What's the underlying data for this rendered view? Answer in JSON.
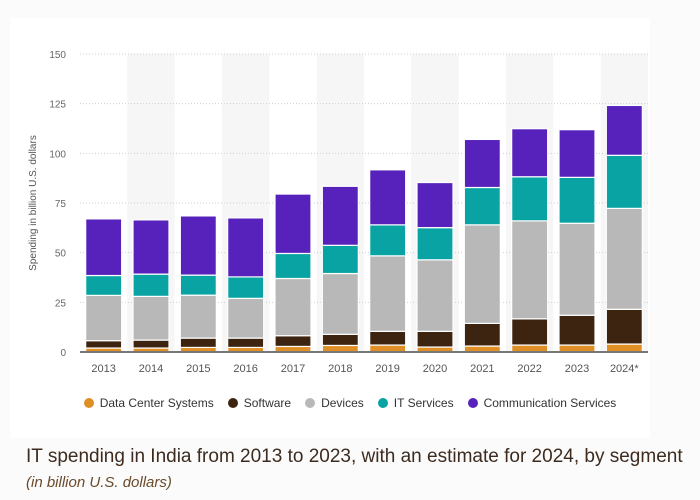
{
  "chart_data": {
    "type": "bar",
    "stacked": true,
    "title": "IT spending in India from 2013 to 2023, with an estimate for 2024, by segment",
    "subtitle": "(in billion U.S. dollars)",
    "xlabel": "",
    "ylabel": "Spending in billion U.S. dollars",
    "ylim": [
      0,
      150
    ],
    "yticks": [
      0,
      25,
      50,
      75,
      100,
      125,
      150
    ],
    "grid": true,
    "legend_position": "bottom",
    "categories": [
      "2013",
      "2014",
      "2015",
      "2016",
      "2017",
      "2018",
      "2019",
      "2020",
      "2021",
      "2022",
      "2023",
      "2024*"
    ],
    "series": [
      {
        "name": "Data Center Systems",
        "color": "#e08e26",
        "values": [
          2.0,
          2.0,
          2.3,
          2.3,
          2.8,
          3.3,
          3.5,
          2.5,
          3.0,
          3.5,
          3.5,
          4.0
        ]
      },
      {
        "name": "Software",
        "color": "#3d2410",
        "values": [
          3.7,
          4.0,
          4.7,
          4.7,
          5.4,
          5.6,
          6.9,
          7.9,
          11.4,
          13.2,
          15.0,
          17.5
        ]
      },
      {
        "name": "Devices",
        "color": "#b8b8b8",
        "values": [
          22.8,
          22.0,
          21.6,
          20.0,
          28.8,
          30.6,
          38.0,
          36.0,
          49.6,
          49.3,
          46.3,
          50.8
        ]
      },
      {
        "name": "IT Services",
        "color": "#0aa3a3",
        "values": [
          10.0,
          11.2,
          10.1,
          10.8,
          12.6,
          14.2,
          15.6,
          16.2,
          18.8,
          22.2,
          23.1,
          26.7
        ]
      },
      {
        "name": "Communication Services",
        "color": "#5722bb",
        "values": [
          28.5,
          27.3,
          29.8,
          29.7,
          29.9,
          29.7,
          27.7,
          22.7,
          24.2,
          24.2,
          24.0,
          25.1
        ]
      }
    ]
  }
}
